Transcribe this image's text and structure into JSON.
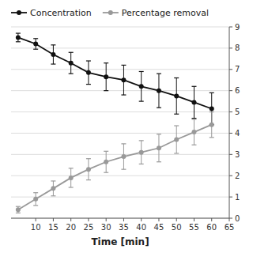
{
  "chart_data": {
    "type": "line",
    "xlabel": "Time [min]",
    "x": [
      5,
      10,
      15,
      20,
      25,
      30,
      35,
      40,
      45,
      50,
      55,
      60
    ],
    "series": [
      {
        "name": "Concentration",
        "color": "#111111",
        "marker": "circle",
        "values": [
          8.5,
          8.2,
          7.7,
          7.3,
          6.85,
          6.65,
          6.5,
          6.2,
          6.0,
          5.75,
          5.45,
          5.15
        ],
        "errors": [
          0.2,
          0.25,
          0.45,
          0.5,
          0.55,
          0.65,
          0.7,
          0.7,
          0.8,
          0.85,
          0.75,
          0.75
        ]
      },
      {
        "name": "Percentage removal",
        "color": "#999999",
        "marker": "circle",
        "axis": "y2",
        "values": [
          0.4,
          0.9,
          1.4,
          1.9,
          2.3,
          2.65,
          2.9,
          3.1,
          3.3,
          3.7,
          4.05,
          4.4
        ],
        "errors": [
          0.15,
          0.3,
          0.35,
          0.45,
          0.5,
          0.5,
          0.6,
          0.55,
          0.65,
          0.65,
          0.6,
          0.6
        ]
      }
    ],
    "xlim": [
      3,
      65
    ],
    "xticks": [
      10,
      15,
      20,
      25,
      30,
      35,
      40,
      45,
      50,
      55,
      60,
      65
    ],
    "ylim": [
      0,
      9
    ],
    "yticks": [
      0,
      1,
      2,
      3,
      4,
      5,
      6,
      7,
      8,
      9
    ],
    "y2lim": [
      0,
      9
    ],
    "y2ticks": [
      0,
      1,
      2,
      3,
      4,
      5,
      6,
      7,
      8,
      9
    ],
    "grid": true,
    "legend": "upper left"
  }
}
